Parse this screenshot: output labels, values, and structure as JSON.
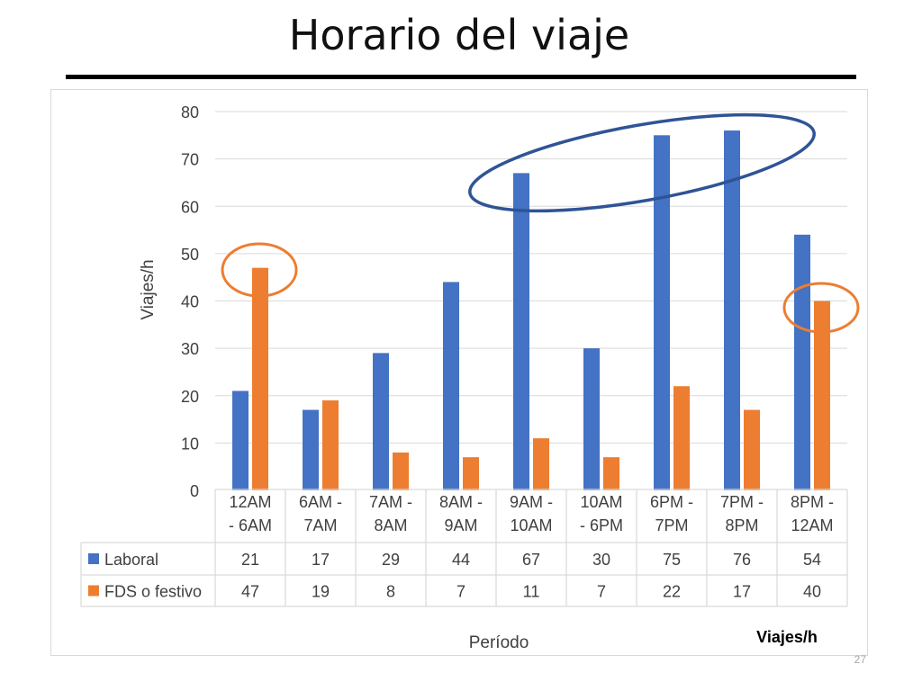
{
  "slide": {
    "title": "Horario del viaje",
    "number": "27"
  },
  "colors": {
    "laboral": "#4472C4",
    "fds": "#ED7D31",
    "highlight_blue": "#2F5496",
    "highlight_orange": "#ED7D31",
    "grid": "#d9d9d9"
  },
  "chart_data": {
    "type": "bar",
    "title": "",
    "categories": [
      [
        "12AM",
        "- 6AM"
      ],
      [
        "6AM -",
        "7AM"
      ],
      [
        "7AM -",
        "8AM"
      ],
      [
        "8AM -",
        "9AM"
      ],
      [
        "9AM -",
        "10AM"
      ],
      [
        "10AM",
        "- 6PM"
      ],
      [
        "6PM -",
        "7PM"
      ],
      [
        "7PM -",
        "8PM"
      ],
      [
        "8PM -",
        "12AM"
      ]
    ],
    "series": [
      {
        "name": "Laboral",
        "values": [
          21,
          17,
          29,
          44,
          67,
          30,
          75,
          76,
          54
        ]
      },
      {
        "name": "FDS o festivo",
        "values": [
          47,
          19,
          8,
          7,
          11,
          7,
          22,
          17,
          40
        ]
      }
    ],
    "ylabel": "Viajes/h",
    "xlabel": "Período",
    "ylim": [
      0,
      80
    ],
    "yticks": [
      0,
      10,
      20,
      30,
      40,
      50,
      60,
      70,
      80
    ],
    "grid": true,
    "legend": "data-table",
    "annotation": "Viajes/h"
  }
}
